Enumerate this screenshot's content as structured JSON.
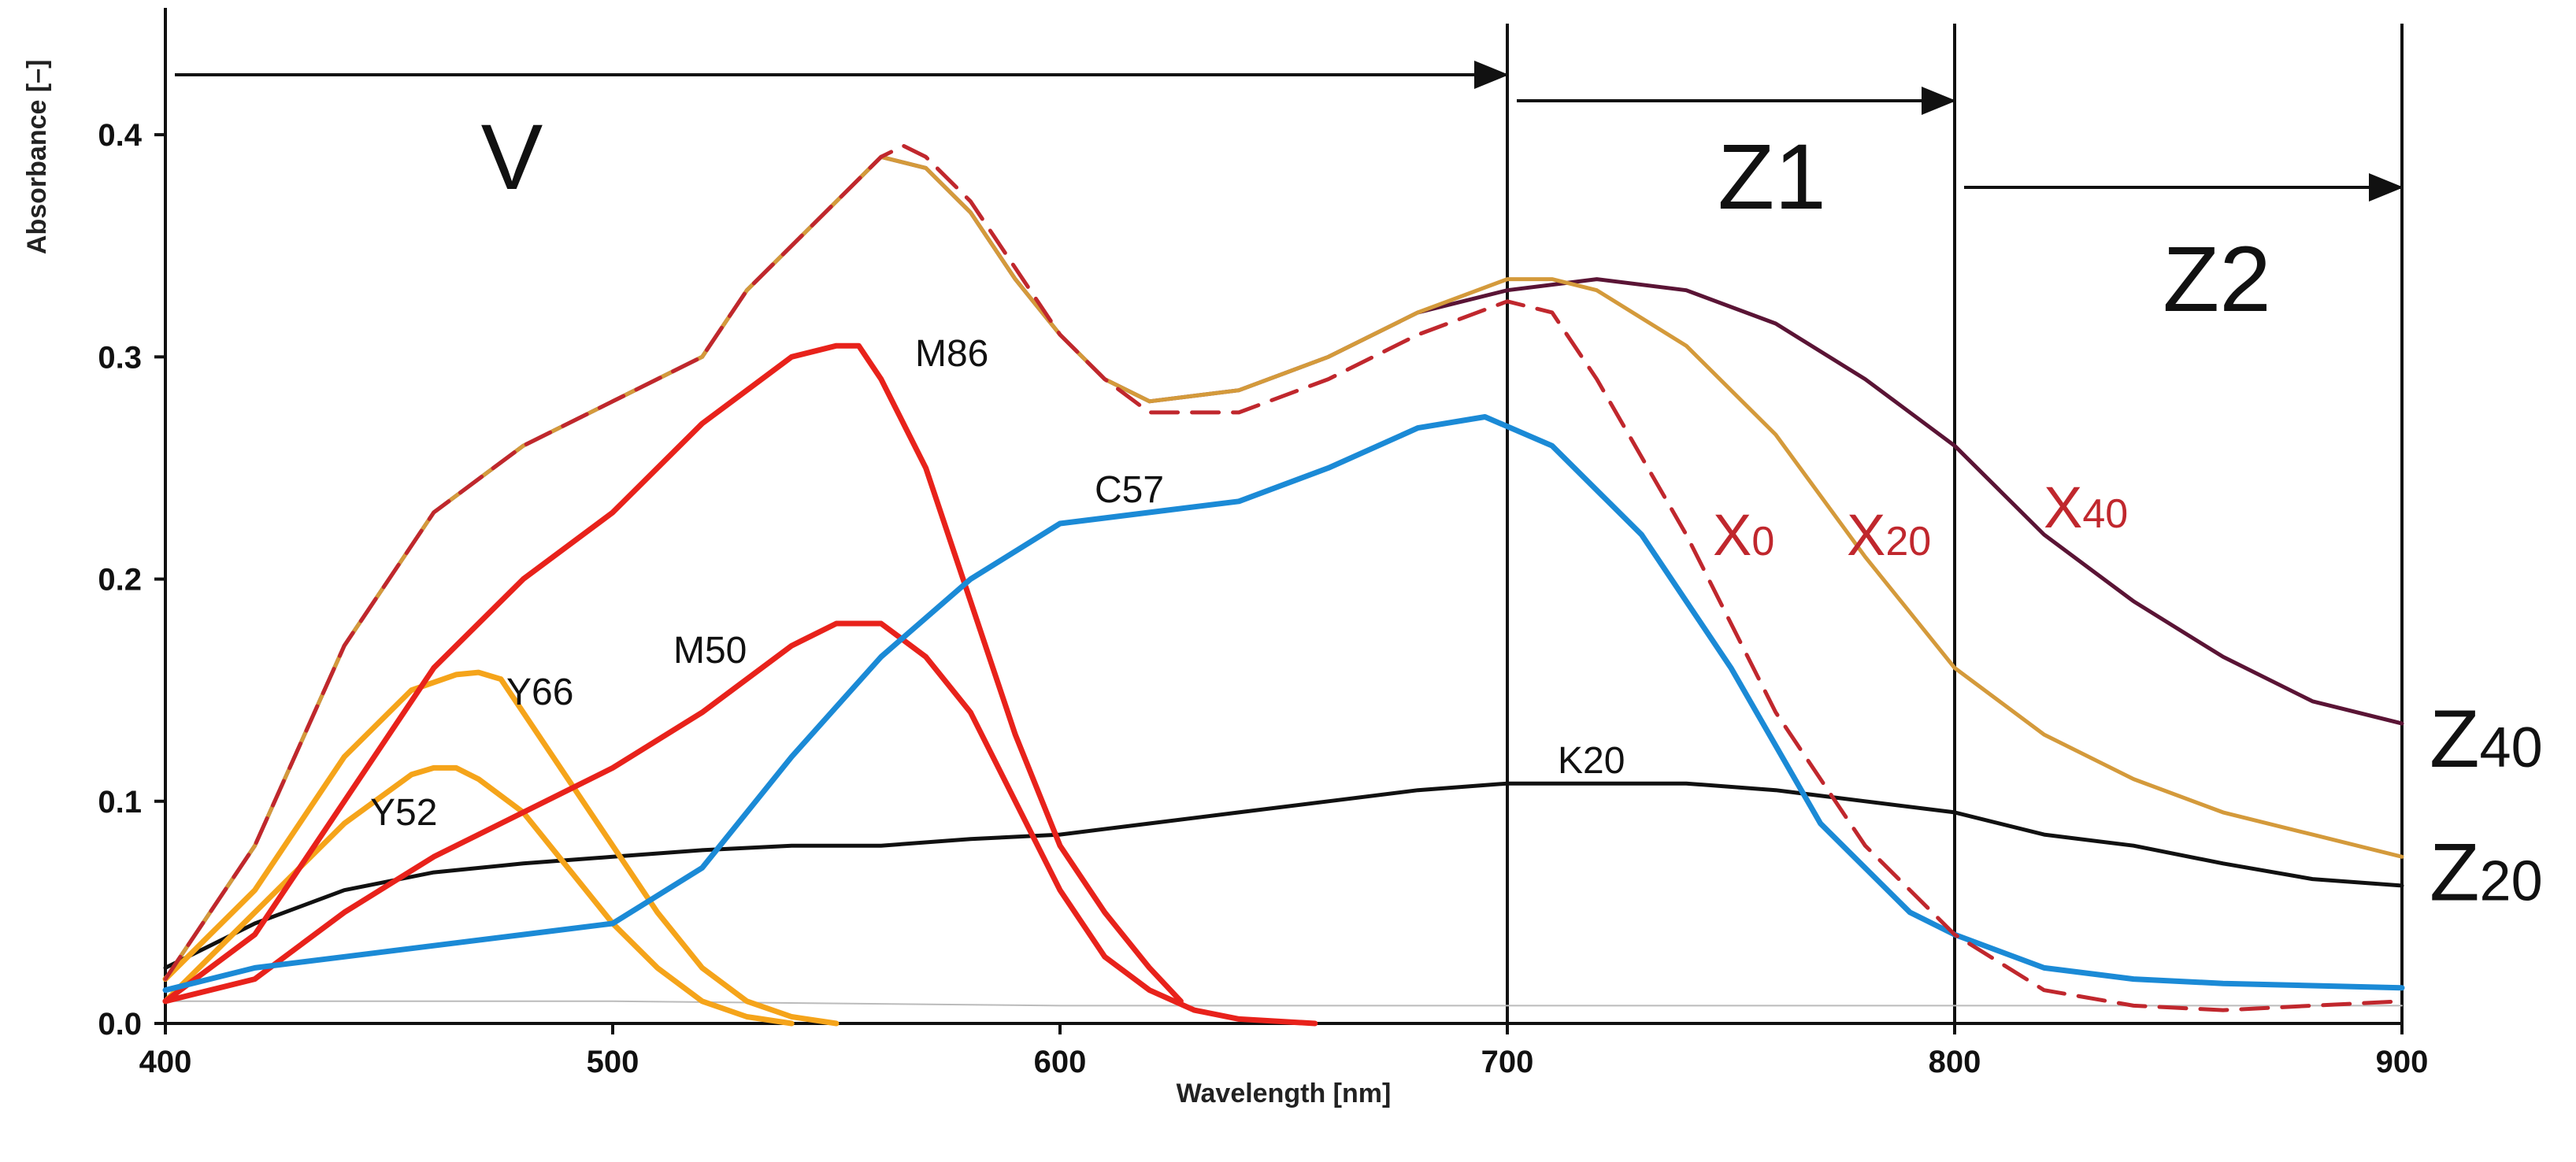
{
  "chart_data": {
    "type": "line",
    "xlabel": "Wavelength [nm]",
    "ylabel": "Absorbance [–]",
    "xlim": [
      400,
      900
    ],
    "ylim": [
      0,
      0.45
    ],
    "xticks": [
      400,
      500,
      600,
      700,
      800,
      900
    ],
    "xtick_labels": [
      "400",
      "500",
      "600",
      "700",
      "800",
      "900"
    ],
    "yticks": [
      0.0,
      0.1,
      0.2,
      0.3,
      0.4
    ],
    "ytick_labels": [
      "0.0",
      "0.1",
      "0.2",
      "0.3",
      "0.4"
    ],
    "grid": false,
    "colors": {
      "magenta": "#e8221b",
      "yellow": "#f5a41a",
      "cyan": "#1b8ad6",
      "black": "#111111",
      "x0": "#c0272d",
      "x20": "#d49a3b",
      "x40": "#5a1435",
      "paper": "#bbbbbb"
    },
    "regions": [
      {
        "name": "V",
        "x_start": 400,
        "x_end": 700
      },
      {
        "name": "Z1",
        "x_start": 700,
        "x_end": 800
      },
      {
        "name": "Z2",
        "x_start": 800,
        "x_end": 900
      }
    ],
    "vertical_lines": [
      700,
      800,
      900
    ],
    "series": [
      {
        "name": "M86",
        "label": "M86",
        "color": "#e8221b",
        "x": [
          400,
          420,
          440,
          460,
          480,
          500,
          520,
          530,
          540,
          550,
          555,
          560,
          570,
          580,
          590,
          600,
          610,
          620,
          627
        ],
        "y": [
          0.01,
          0.04,
          0.1,
          0.16,
          0.2,
          0.23,
          0.27,
          0.285,
          0.3,
          0.305,
          0.305,
          0.29,
          0.25,
          0.19,
          0.13,
          0.08,
          0.05,
          0.025,
          0.01
        ]
      },
      {
        "name": "M50",
        "label": "M50",
        "color": "#e8221b",
        "x": [
          400,
          420,
          440,
          460,
          480,
          500,
          520,
          540,
          550,
          560,
          570,
          580,
          590,
          600,
          610,
          620,
          630,
          640,
          657
        ],
        "y": [
          0.01,
          0.02,
          0.05,
          0.075,
          0.095,
          0.115,
          0.14,
          0.17,
          0.18,
          0.18,
          0.165,
          0.14,
          0.1,
          0.06,
          0.03,
          0.015,
          0.006,
          0.002,
          0.0
        ]
      },
      {
        "name": "Y66",
        "label": "Y66",
        "color": "#f5a41a",
        "x": [
          400,
          420,
          440,
          455,
          465,
          470,
          475,
          480,
          490,
          500,
          510,
          520,
          530,
          540,
          550
        ],
        "y": [
          0.02,
          0.06,
          0.12,
          0.15,
          0.157,
          0.158,
          0.155,
          0.14,
          0.11,
          0.08,
          0.05,
          0.025,
          0.01,
          0.003,
          0.0
        ]
      },
      {
        "name": "Y52",
        "label": "Y52",
        "color": "#f5a41a",
        "x": [
          400,
          420,
          440,
          455,
          460,
          465,
          470,
          480,
          490,
          500,
          510,
          520,
          530,
          540
        ],
        "y": [
          0.01,
          0.05,
          0.09,
          0.112,
          0.115,
          0.115,
          0.11,
          0.095,
          0.07,
          0.045,
          0.025,
          0.01,
          0.003,
          0.0
        ]
      },
      {
        "name": "C57",
        "label": "C57",
        "color": "#1b8ad6",
        "x": [
          400,
          420,
          440,
          460,
          480,
          500,
          520,
          540,
          560,
          580,
          600,
          620,
          640,
          660,
          680,
          695,
          710,
          730,
          750,
          770,
          790,
          800,
          820,
          840,
          860,
          880,
          900
        ],
        "y": [
          0.015,
          0.025,
          0.03,
          0.035,
          0.04,
          0.045,
          0.07,
          0.12,
          0.165,
          0.2,
          0.225,
          0.23,
          0.235,
          0.25,
          0.268,
          0.273,
          0.26,
          0.22,
          0.16,
          0.09,
          0.05,
          0.04,
          0.025,
          0.02,
          0.018,
          0.017,
          0.016
        ]
      },
      {
        "name": "K20",
        "label": "K20",
        "color": "#111111",
        "x": [
          400,
          420,
          440,
          460,
          480,
          500,
          520,
          540,
          560,
          580,
          600,
          620,
          640,
          660,
          680,
          700,
          720,
          740,
          760,
          780,
          800,
          820,
          840,
          860,
          880,
          900
        ],
        "y": [
          0.025,
          0.045,
          0.06,
          0.068,
          0.072,
          0.075,
          0.078,
          0.08,
          0.08,
          0.083,
          0.085,
          0.09,
          0.095,
          0.1,
          0.105,
          0.108,
          0.108,
          0.108,
          0.105,
          0.1,
          0.095,
          0.085,
          0.08,
          0.072,
          0.065,
          0.062
        ]
      },
      {
        "name": "X0",
        "label": "X",
        "label_sub": "0",
        "color": "#c0272d",
        "dashed": true,
        "x": [
          400,
          420,
          440,
          460,
          480,
          500,
          520,
          530,
          540,
          550,
          560,
          565,
          570,
          580,
          590,
          600,
          610,
          620,
          640,
          660,
          680,
          700,
          710,
          720,
          740,
          760,
          780,
          800,
          820,
          840,
          860,
          880,
          900
        ],
        "y": [
          0.02,
          0.08,
          0.17,
          0.23,
          0.26,
          0.28,
          0.3,
          0.33,
          0.35,
          0.37,
          0.39,
          0.395,
          0.39,
          0.37,
          0.34,
          0.31,
          0.29,
          0.275,
          0.275,
          0.29,
          0.31,
          0.325,
          0.32,
          0.29,
          0.22,
          0.14,
          0.08,
          0.04,
          0.015,
          0.008,
          0.006,
          0.008,
          0.01
        ]
      },
      {
        "name": "X20",
        "label": "X",
        "label_sub": "20",
        "color": "#d49a3b",
        "x": [
          400,
          420,
          440,
          460,
          480,
          500,
          520,
          530,
          540,
          550,
          560,
          570,
          580,
          590,
          600,
          610,
          620,
          640,
          660,
          680,
          700,
          710,
          720,
          740,
          760,
          780,
          800,
          820,
          840,
          860,
          880,
          900
        ],
        "y": [
          0.02,
          0.08,
          0.17,
          0.23,
          0.26,
          0.28,
          0.3,
          0.33,
          0.35,
          0.37,
          0.39,
          0.385,
          0.365,
          0.335,
          0.31,
          0.29,
          0.28,
          0.285,
          0.3,
          0.32,
          0.335,
          0.335,
          0.33,
          0.305,
          0.265,
          0.21,
          0.16,
          0.13,
          0.11,
          0.095,
          0.085,
          0.075
        ]
      },
      {
        "name": "X40",
        "label": "X",
        "label_sub": "40",
        "color": "#5a1435",
        "x": [
          400,
          420,
          440,
          460,
          480,
          500,
          520,
          530,
          540,
          550,
          560,
          570,
          580,
          590,
          600,
          610,
          620,
          640,
          660,
          680,
          700,
          720,
          740,
          760,
          780,
          800,
          820,
          840,
          860,
          880,
          900
        ],
        "y": [
          0.02,
          0.08,
          0.17,
          0.23,
          0.26,
          0.28,
          0.3,
          0.33,
          0.35,
          0.37,
          0.39,
          0.385,
          0.365,
          0.335,
          0.31,
          0.29,
          0.28,
          0.285,
          0.3,
          0.32,
          0.33,
          0.335,
          0.33,
          0.315,
          0.29,
          0.26,
          0.22,
          0.19,
          0.165,
          0.145,
          0.135
        ]
      },
      {
        "name": "paper",
        "label": "",
        "color": "#bbbbbb",
        "thin": true,
        "x": [
          400,
          500,
          600,
          700,
          800,
          900
        ],
        "y": [
          0.01,
          0.01,
          0.008,
          0.008,
          0.008,
          0.008
        ]
      }
    ],
    "z_labels": [
      {
        "name": "Z40",
        "main": "Z",
        "sub": "40",
        "y": 0.135
      },
      {
        "name": "Z20",
        "main": "Z",
        "sub": "20",
        "y": 0.075
      }
    ]
  }
}
